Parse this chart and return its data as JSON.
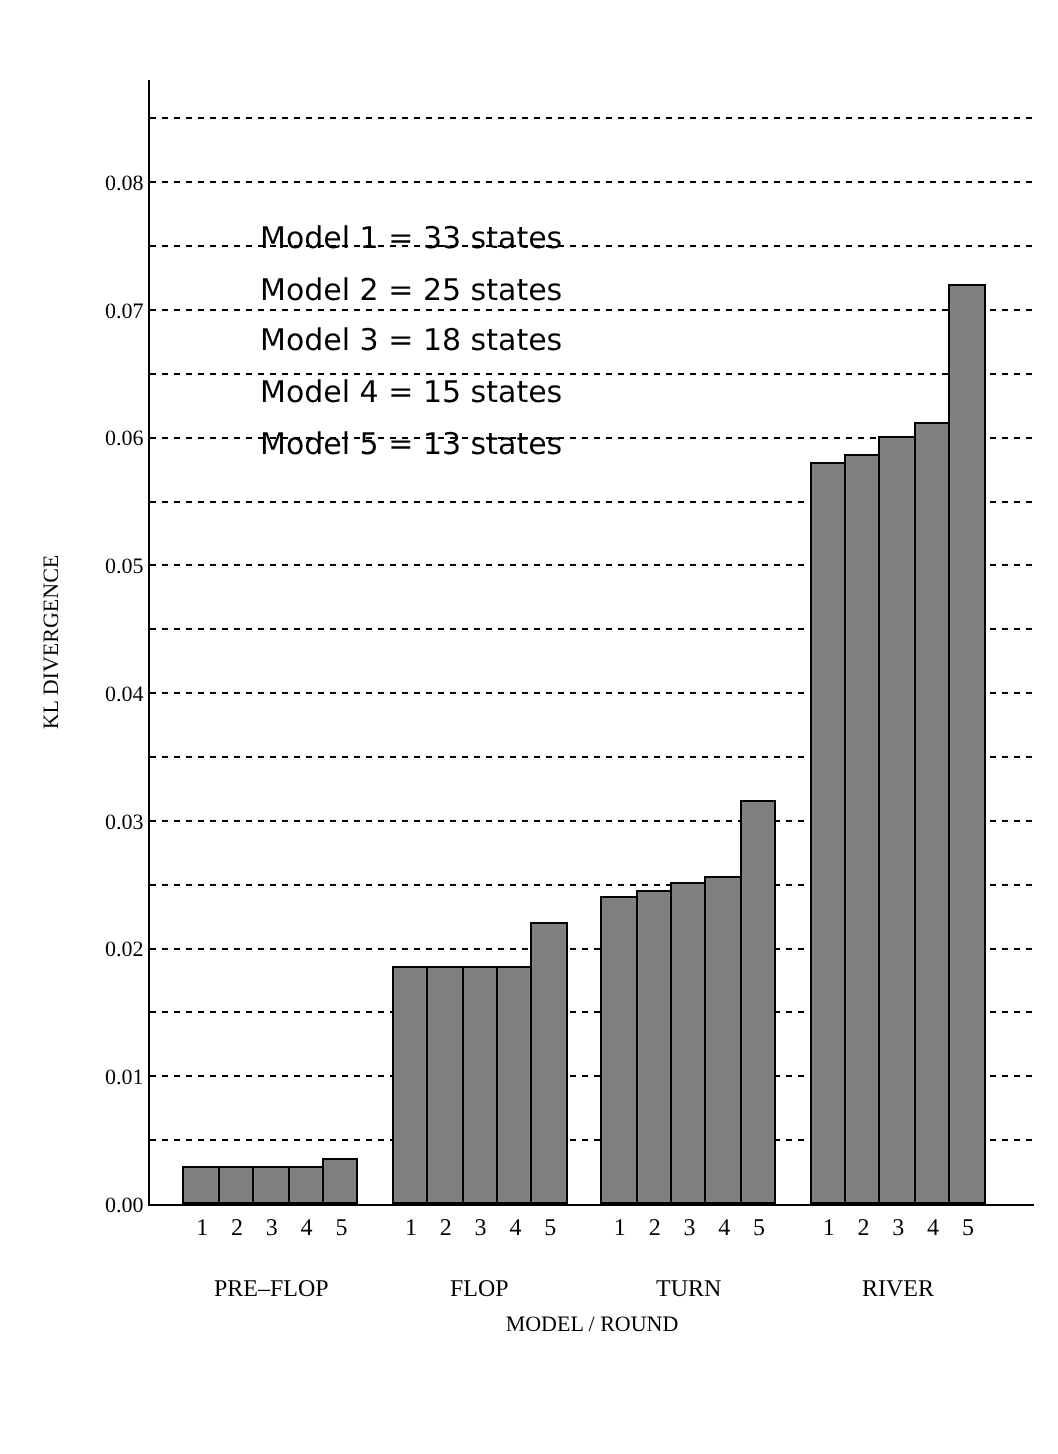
{
  "chart_data": {
    "type": "bar",
    "xlabel": "MODEL / ROUND",
    "ylabel": "KL DIVERGENCE",
    "categories": [
      "1",
      "2",
      "3",
      "4",
      "5",
      null,
      "1",
      "2",
      "3",
      "4",
      "5",
      null,
      "1",
      "2",
      "3",
      "4",
      "5",
      null,
      "1",
      "2",
      "3",
      "4",
      "5"
    ],
    "values": [
      0.0028,
      0.0028,
      0.0028,
      0.0028,
      0.0035,
      null,
      0.0185,
      0.0185,
      0.0185,
      0.0185,
      0.022,
      null,
      0.024,
      0.0245,
      0.025,
      0.0255,
      0.0314,
      null,
      0.058,
      0.0585,
      0.06,
      0.061,
      0.0719
    ],
    "color": "#808080",
    "ylim": [
      0,
      0.088
    ],
    "yticks": [
      {
        "value": 0,
        "label": "0.00"
      },
      {
        "value": 0.005,
        "label": null
      },
      {
        "value": 0.01,
        "label": "0.01"
      },
      {
        "value": 0.015,
        "label": null
      },
      {
        "value": 0.02,
        "label": "0.02"
      },
      {
        "value": 0.025,
        "label": null
      },
      {
        "value": 0.03,
        "label": "0.03"
      },
      {
        "value": 0.035,
        "label": null
      },
      {
        "value": 0.04,
        "label": "0.04"
      },
      {
        "value": 0.045,
        "label": null
      },
      {
        "value": 0.05,
        "label": "0.05"
      },
      {
        "value": 0.055,
        "label": null
      },
      {
        "value": 0.06,
        "label": "0.06"
      },
      {
        "value": 0.065,
        "label": null
      },
      {
        "value": 0.07,
        "label": "0.07"
      },
      {
        "value": 0.075,
        "label": null
      },
      {
        "value": 0.08,
        "label": "0.08"
      },
      {
        "value": 0.085,
        "label": null
      }
    ],
    "grid": "y",
    "legend": false,
    "annotations": [
      "PRE–FLOP",
      "FLOP",
      "TURN",
      "RIVER",
      "Model 1 = 33 states",
      "Model 2 = 25 states",
      "Model 3 = 18 states",
      "Model 4 = 15 states",
      "Model 5 = 13 states"
    ]
  }
}
